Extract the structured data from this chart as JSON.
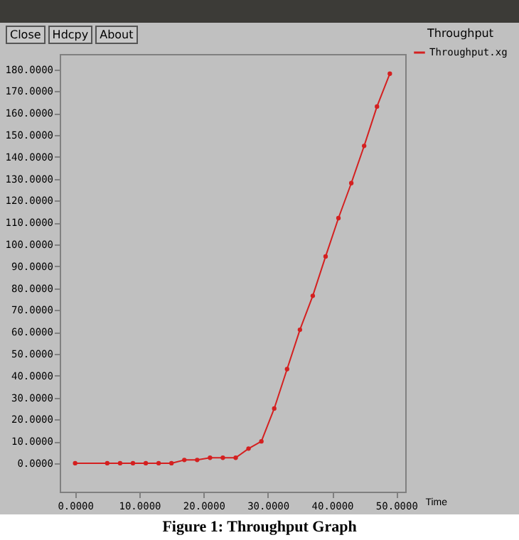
{
  "chart_data": {
    "type": "line",
    "title": "Throughput",
    "xlabel": "Time",
    "annotations": [
      "Close",
      "Hdcpy",
      "About",
      "Figure 1: Throughput Graph"
    ],
    "x": [
      0,
      5,
      7,
      9,
      11,
      13,
      15,
      17,
      19,
      21,
      23,
      25,
      27,
      29,
      31,
      33,
      35,
      37,
      39,
      41,
      43,
      45,
      47,
      49
    ],
    "series": [
      {
        "name": "Throughput.xg",
        "color": "#d42020",
        "values": [
          0,
          0,
          0,
          0,
          0,
          0,
          0,
          1.5,
          1.5,
          2.5,
          2.5,
          2.5,
          6.7,
          10,
          25,
          43,
          61,
          76.5,
          94.5,
          112,
          128,
          145,
          163,
          178
        ]
      }
    ],
    "xlim": [
      -2.4,
      51.4
    ],
    "ylim": [
      -13,
      187
    ],
    "xticks": [
      {
        "value": 0,
        "label": "0.0000"
      },
      {
        "value": 10,
        "label": "10.0000"
      },
      {
        "value": 20,
        "label": "20.0000"
      },
      {
        "value": 30,
        "label": "30.0000"
      },
      {
        "value": 40,
        "label": "40.0000"
      },
      {
        "value": 50,
        "label": "50.0000"
      }
    ],
    "yticks": [
      {
        "value": 0,
        "label": "0.0000"
      },
      {
        "value": 10,
        "label": "10.0000"
      },
      {
        "value": 20,
        "label": "20.0000"
      },
      {
        "value": 30,
        "label": "30.0000"
      },
      {
        "value": 40,
        "label": "40.0000"
      },
      {
        "value": 50,
        "label": "50.0000"
      },
      {
        "value": 60,
        "label": "60.0000"
      },
      {
        "value": 70,
        "label": "70.0000"
      },
      {
        "value": 80,
        "label": "80.0000"
      },
      {
        "value": 90,
        "label": "90.0000"
      },
      {
        "value": 100,
        "label": "100.0000"
      },
      {
        "value": 110,
        "label": "110.0000"
      },
      {
        "value": 120,
        "label": "120.0000"
      },
      {
        "value": 130,
        "label": "130.0000"
      },
      {
        "value": 140,
        "label": "140.0000"
      },
      {
        "value": 150,
        "label": "150.0000"
      },
      {
        "value": 160,
        "label": "160.0000"
      },
      {
        "value": 170,
        "label": "170.0000"
      },
      {
        "value": 180,
        "label": "180.0000"
      }
    ],
    "grid": false,
    "legend": "top right",
    "marker": "circle",
    "line_style": "solid"
  }
}
